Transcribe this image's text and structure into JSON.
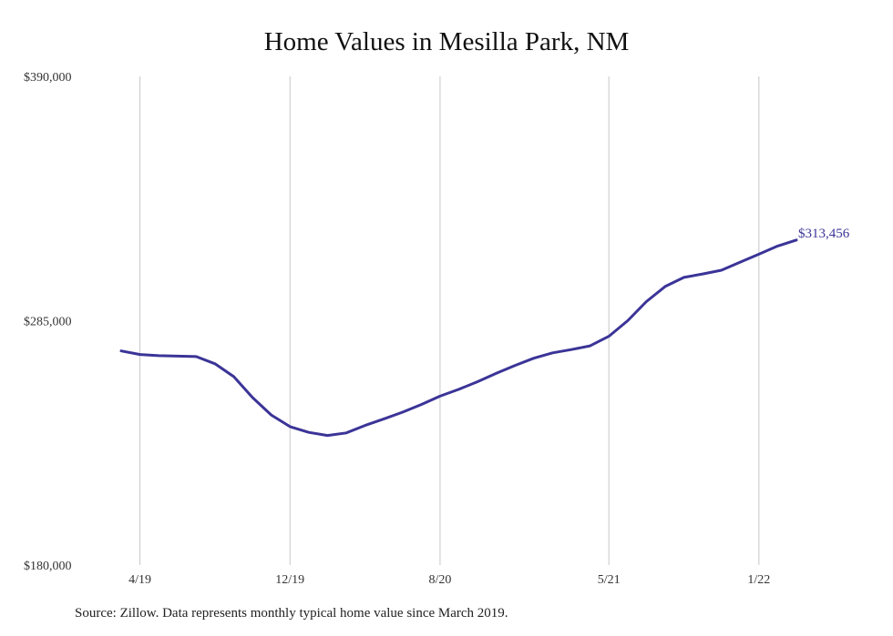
{
  "chart_data": {
    "type": "line",
    "title": "Home Values in Mesilla Park, NM",
    "source": "Source: Zillow. Data represents monthly typical home value since March 2019.",
    "ylim": [
      180000,
      390000
    ],
    "yticks": [
      {
        "value": 390000,
        "label": "$390,000"
      },
      {
        "value": 285000,
        "label": "$285,000"
      },
      {
        "value": 180000,
        "label": "$180,000"
      }
    ],
    "xticks": [
      {
        "index": 1,
        "label": "4/19"
      },
      {
        "index": 9,
        "label": "12/19"
      },
      {
        "index": 17,
        "label": "8/20"
      },
      {
        "index": 26,
        "label": "5/21"
      },
      {
        "index": 34,
        "label": "1/22"
      }
    ],
    "grid": "vertical",
    "line_color": "#3b3497",
    "end_label": "$313,456",
    "series": [
      {
        "x": [
          "3/19",
          "4/19",
          "5/19",
          "6/19",
          "7/19",
          "8/19",
          "9/19",
          "10/19",
          "11/19",
          "12/19",
          "1/20",
          "2/20",
          "3/20",
          "4/20",
          "5/20",
          "6/20",
          "7/20",
          "8/20",
          "9/20",
          "10/20",
          "11/20",
          "12/20",
          "1/21",
          "2/21",
          "3/21",
          "4/21",
          "5/21",
          "6/21",
          "7/21",
          "8/21",
          "9/21",
          "10/21",
          "11/21",
          "12/21",
          "1/22",
          "2/22",
          "3/22"
        ],
        "values": [
          272000,
          270500,
          270000,
          269800,
          269600,
          266500,
          261000,
          252000,
          244500,
          239500,
          237000,
          235700,
          236800,
          240000,
          242800,
          245700,
          249000,
          252600,
          255500,
          258800,
          262400,
          265800,
          268900,
          271200,
          272600,
          274200,
          278300,
          285000,
          293200,
          299700,
          303600,
          305100,
          306700,
          310200,
          313600,
          317100,
          319700
        ]
      }
    ]
  }
}
